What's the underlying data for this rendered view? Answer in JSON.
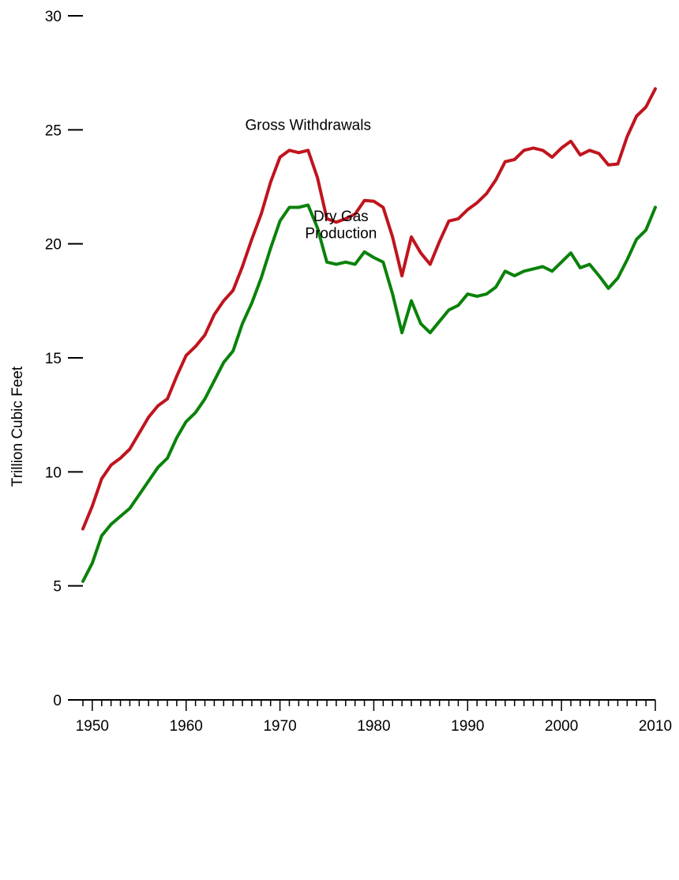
{
  "chart_data": {
    "type": "line",
    "title": "",
    "xlabel": "",
    "ylabel": "Trillion Cubic Feet",
    "xlim": [
      1949,
      2010
    ],
    "ylim": [
      0,
      30
    ],
    "grid": false,
    "y_ticks": [
      0,
      5,
      10,
      15,
      20,
      25,
      30
    ],
    "x_tick_labels": [
      1950,
      1960,
      1970,
      1980,
      1990,
      2000,
      2010
    ],
    "x": [
      1949,
      1950,
      1951,
      1952,
      1953,
      1954,
      1955,
      1956,
      1957,
      1958,
      1959,
      1960,
      1961,
      1962,
      1963,
      1964,
      1965,
      1966,
      1967,
      1968,
      1969,
      1970,
      1971,
      1972,
      1973,
      1974,
      1975,
      1976,
      1977,
      1978,
      1979,
      1980,
      1981,
      1982,
      1983,
      1984,
      1985,
      1986,
      1987,
      1988,
      1989,
      1990,
      1991,
      1992,
      1993,
      1994,
      1995,
      1996,
      1997,
      1998,
      1999,
      2000,
      2001,
      2002,
      2003,
      2004,
      2005,
      2006,
      2007,
      2008,
      2009,
      2010
    ],
    "series": [
      {
        "name": "Gross Withdrawals",
        "color": "#c0141e",
        "values": [
          7.5,
          8.5,
          9.7,
          10.3,
          10.6,
          11.0,
          11.7,
          12.4,
          12.9,
          13.2,
          14.2,
          15.1,
          15.5,
          16.0,
          16.9,
          17.5,
          17.96,
          19.0,
          20.2,
          21.3,
          22.7,
          23.8,
          24.1,
          24.0,
          24.1,
          22.9,
          21.1,
          20.95,
          21.1,
          21.3,
          21.9,
          21.87,
          21.6,
          20.3,
          18.6,
          20.3,
          19.6,
          19.1,
          20.1,
          21.0,
          21.1,
          21.5,
          21.8,
          22.2,
          22.8,
          23.6,
          23.7,
          24.1,
          24.2,
          24.1,
          23.8,
          24.2,
          24.5,
          23.9,
          24.1,
          23.96,
          23.46,
          23.5,
          24.7,
          25.6,
          26.0,
          26.8
        ]
      },
      {
        "name": "Dry Gas Production",
        "color": "#0a820a",
        "values": [
          5.2,
          6.0,
          7.2,
          7.7,
          8.05,
          8.4,
          9.0,
          9.6,
          10.2,
          10.6,
          11.5,
          12.2,
          12.6,
          13.2,
          14.0,
          14.8,
          15.3,
          16.5,
          17.4,
          18.5,
          19.8,
          21.0,
          21.6,
          21.6,
          21.7,
          20.7,
          19.2,
          19.1,
          19.2,
          19.1,
          19.65,
          19.4,
          19.2,
          17.8,
          16.1,
          17.5,
          16.5,
          16.1,
          16.6,
          17.1,
          17.3,
          17.8,
          17.7,
          17.8,
          18.1,
          18.8,
          18.6,
          18.8,
          18.9,
          19.0,
          18.8,
          19.2,
          19.6,
          18.95,
          19.1,
          18.6,
          18.05,
          18.5,
          19.3,
          20.2,
          20.6,
          21.6
        ]
      }
    ],
    "annotations": [
      {
        "text": "Gross Withdrawals",
        "x": 1973.0,
        "y": 25.0
      },
      {
        "text": "Dry Gas",
        "x": 1976.5,
        "y": 21.0
      },
      {
        "text": "Production",
        "x": 1976.5,
        "y": 20.25
      }
    ]
  }
}
